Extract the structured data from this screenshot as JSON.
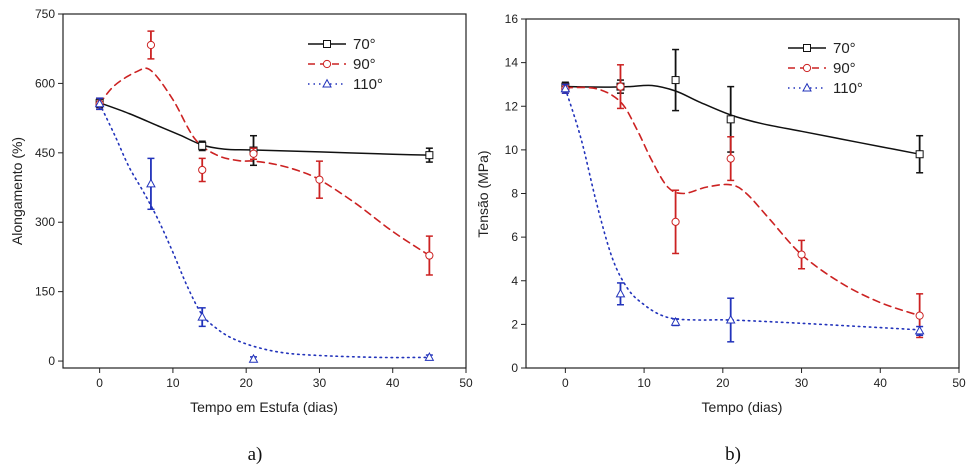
{
  "chart_data": [
    {
      "type": "line",
      "panel_label": "a)",
      "xlabel": "Tempo em Estufa (dias)",
      "ylabel": "Alongamento (%)",
      "xlim": [
        -5,
        50
      ],
      "ylim": [
        -15,
        750
      ],
      "xticks": [
        0,
        10,
        20,
        30,
        40,
        50
      ],
      "yticks": [
        0,
        150,
        300,
        450,
        600,
        750
      ],
      "legend_position": "top-right",
      "series": [
        {
          "name": "70°",
          "color": "#111111",
          "dash": "",
          "marker": "square",
          "x": [
            0,
            14,
            21,
            45
          ],
          "y": [
            558,
            465,
            455,
            445
          ],
          "err": [
            10,
            10,
            32,
            15
          ],
          "curve": [
            [
              0,
              558
            ],
            [
              4,
              535
            ],
            [
              8,
              508
            ],
            [
              11,
              488
            ],
            [
              14,
              467
            ],
            [
              17,
              458
            ],
            [
              21,
              456
            ],
            [
              30,
              452
            ],
            [
              40,
              447
            ],
            [
              45,
              445
            ]
          ]
        },
        {
          "name": "90°",
          "color": "#cc2222",
          "dash": "7,5",
          "marker": "circle",
          "x": [
            0,
            7,
            14,
            21,
            30,
            45
          ],
          "y": [
            556,
            683,
            413,
            448,
            392,
            228
          ],
          "err": [
            12,
            30,
            25,
            12,
            40,
            42
          ],
          "curve": [
            [
              0,
              556
            ],
            [
              2,
              595
            ],
            [
              5,
              625
            ],
            [
              7,
              628
            ],
            [
              10,
              565
            ],
            [
              13,
              480
            ],
            [
              16,
              445
            ],
            [
              19,
              433
            ],
            [
              21,
              432
            ],
            [
              24,
              425
            ],
            [
              27,
              412
            ],
            [
              30,
              392
            ],
            [
              35,
              340
            ],
            [
              40,
              280
            ],
            [
              45,
              228
            ]
          ]
        },
        {
          "name": "110°",
          "color": "#2233bb",
          "dash": "1.5,4",
          "marker": "triangle",
          "x": [
            0,
            7,
            14,
            21,
            45
          ],
          "y": [
            556,
            383,
            95,
            4,
            8
          ],
          "err": [
            12,
            55,
            20,
            5,
            5
          ],
          "curve": [
            [
              0,
              556
            ],
            [
              2,
              490
            ],
            [
              4,
              420
            ],
            [
              6,
              365
            ],
            [
              8,
              305
            ],
            [
              10,
              235
            ],
            [
              12,
              160
            ],
            [
              14,
              100
            ],
            [
              16,
              70
            ],
            [
              18,
              50
            ],
            [
              21,
              32
            ],
            [
              25,
              18
            ],
            [
              30,
              12
            ],
            [
              38,
              8
            ],
            [
              45,
              8
            ]
          ]
        }
      ]
    },
    {
      "type": "line",
      "panel_label": "b)",
      "xlabel": "Tempo (dias)",
      "ylabel": "Tensão (MPa)",
      "xlim": [
        -5,
        50
      ],
      "ylim": [
        0,
        16
      ],
      "xticks": [
        0,
        10,
        20,
        30,
        40,
        50
      ],
      "yticks": [
        0,
        2,
        4,
        6,
        8,
        10,
        12,
        14,
        16
      ],
      "legend_position": "top-right",
      "series": [
        {
          "name": "70°",
          "color": "#111111",
          "dash": "",
          "marker": "square",
          "x": [
            0,
            7,
            14,
            21,
            45
          ],
          "y": [
            12.9,
            12.9,
            13.2,
            11.4,
            9.8
          ],
          "err": [
            0.2,
            0.3,
            1.4,
            1.5,
            0.85
          ],
          "curve": [
            [
              0,
              12.9
            ],
            [
              5,
              12.88
            ],
            [
              8,
              12.9
            ],
            [
              11,
              12.95
            ],
            [
              14,
              12.7
            ],
            [
              17,
              12.2
            ],
            [
              21,
              11.6
            ],
            [
              25,
              11.2
            ],
            [
              30,
              10.85
            ],
            [
              35,
              10.5
            ],
            [
              40,
              10.15
            ],
            [
              45,
              9.8
            ]
          ]
        },
        {
          "name": "90°",
          "color": "#cc2222",
          "dash": "7,5",
          "marker": "circle",
          "x": [
            0,
            7,
            14,
            21,
            30,
            45
          ],
          "y": [
            12.8,
            12.9,
            6.7,
            9.6,
            5.2,
            2.4
          ],
          "err": [
            0.2,
            1.0,
            1.45,
            1.0,
            0.65,
            1.0
          ],
          "curve": [
            [
              0,
              12.85
            ],
            [
              4,
              12.8
            ],
            [
              7,
              12.2
            ],
            [
              9,
              11.0
            ],
            [
              11,
              9.5
            ],
            [
              13,
              8.3
            ],
            [
              15,
              8.0
            ],
            [
              18,
              8.3
            ],
            [
              21,
              8.4
            ],
            [
              23,
              8.0
            ],
            [
              26,
              6.8
            ],
            [
              30,
              5.2
            ],
            [
              35,
              3.9
            ],
            [
              40,
              3.0
            ],
            [
              45,
              2.4
            ]
          ]
        },
        {
          "name": "110°",
          "color": "#2233bb",
          "dash": "1.5,4",
          "marker": "triangle",
          "x": [
            0,
            7,
            14,
            21,
            45
          ],
          "y": [
            12.8,
            3.4,
            2.1,
            2.2,
            1.7
          ],
          "err": [
            0.2,
            0.5,
            0.15,
            1.0,
            0.2
          ],
          "curve": [
            [
              0,
              12.8
            ],
            [
              2,
              10.5
            ],
            [
              4,
              7.5
            ],
            [
              6,
              5.0
            ],
            [
              8,
              3.6
            ],
            [
              10,
              2.9
            ],
            [
              12,
              2.45
            ],
            [
              14,
              2.25
            ],
            [
              17,
              2.2
            ],
            [
              21,
              2.2
            ],
            [
              30,
              2.05
            ],
            [
              40,
              1.85
            ],
            [
              45,
              1.75
            ]
          ]
        }
      ]
    }
  ]
}
